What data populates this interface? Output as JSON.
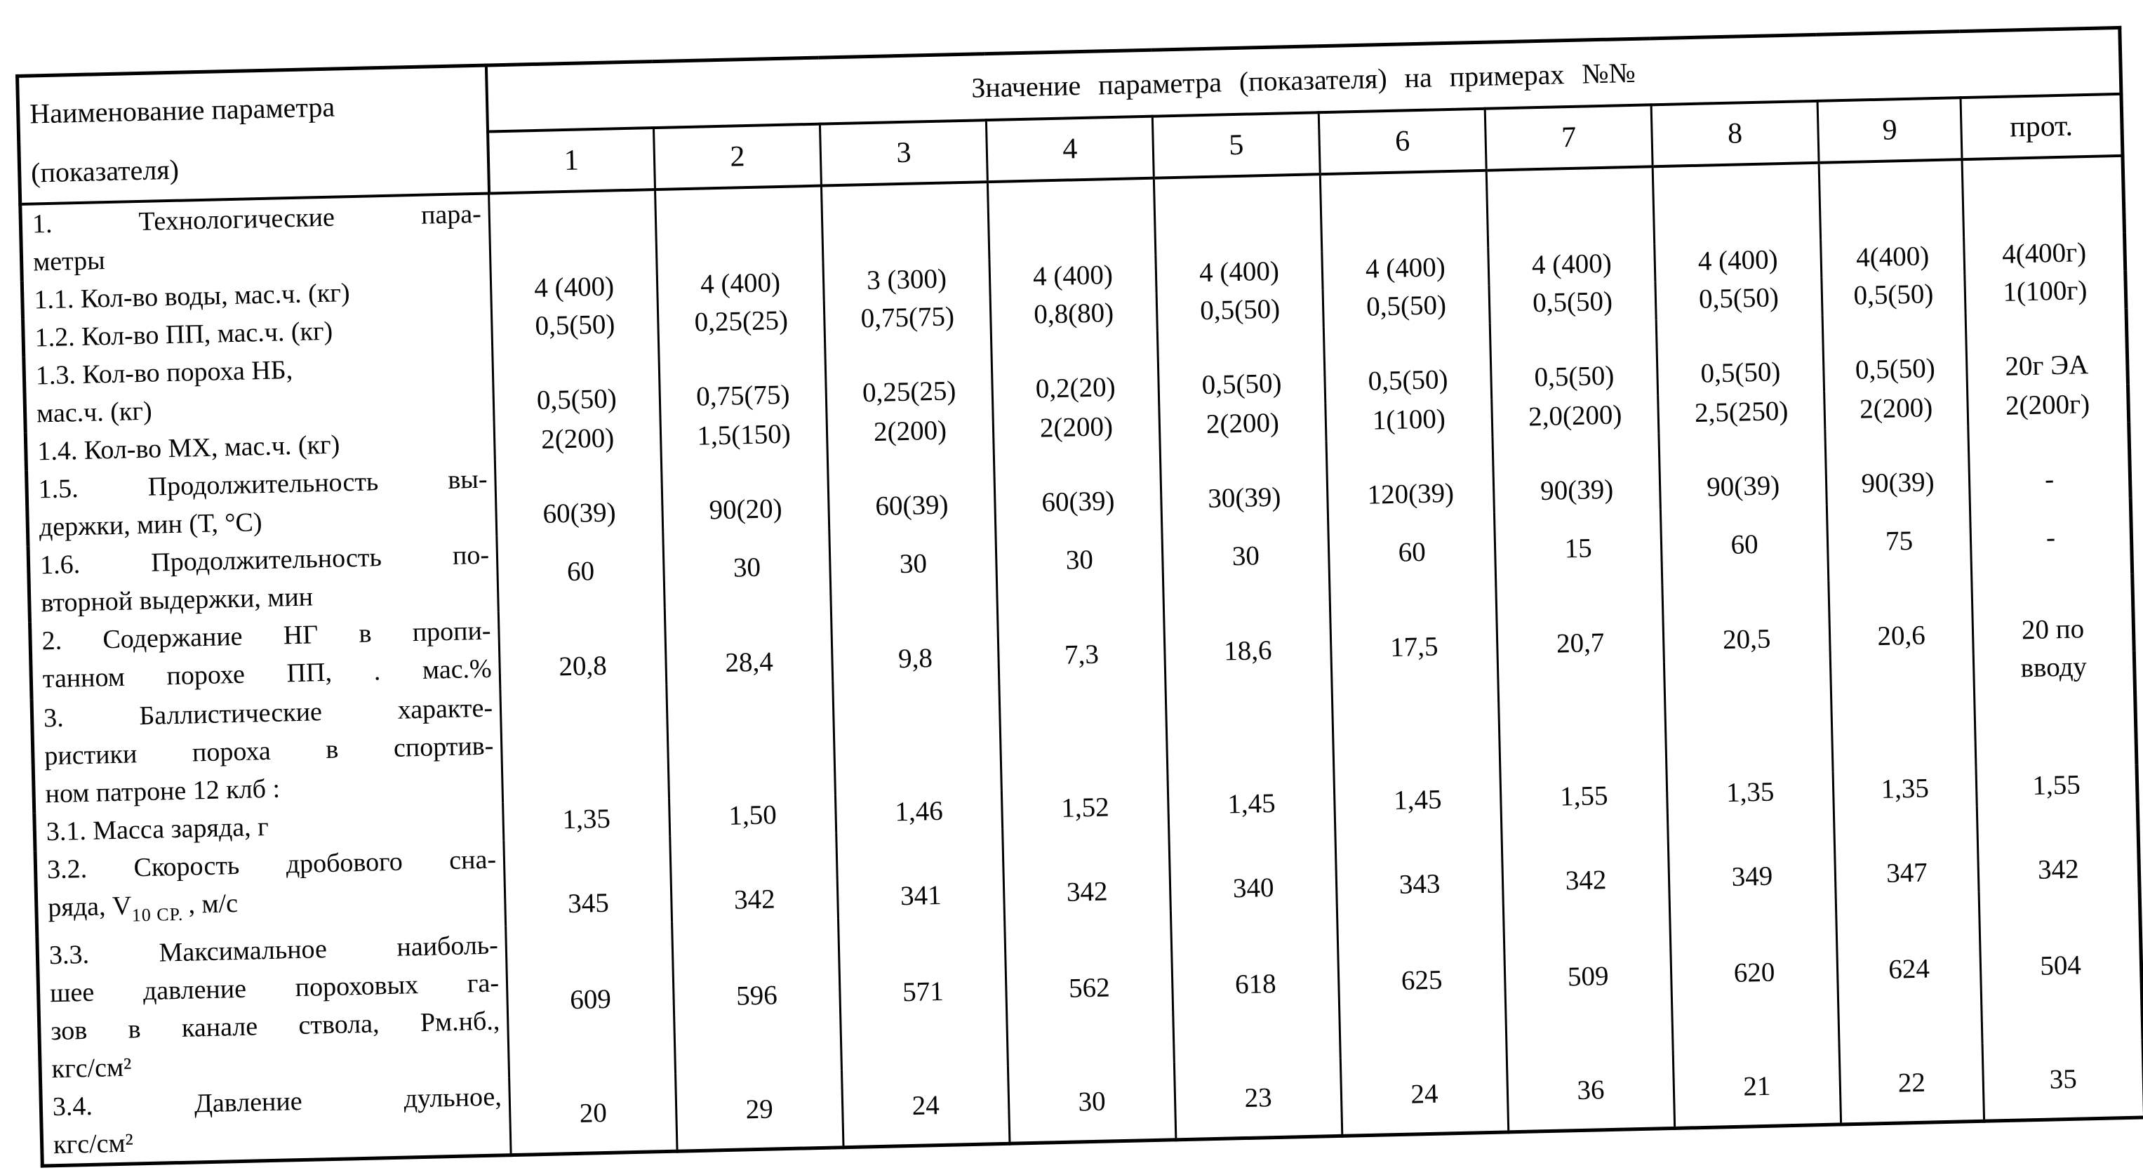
{
  "header": {
    "param_line1": "Наименование параметра",
    "param_line2": "(показателя)",
    "value_title": "Значение параметра (показателя) на примерах №№",
    "columns": [
      "1",
      "2",
      "3",
      "4",
      "5",
      "6",
      "7",
      "8",
      "9",
      "прот."
    ]
  },
  "rows": [
    {
      "label": [
        {
          "t": "1.  Технологические пара-",
          "j": true
        },
        {
          "t": "метры"
        }
      ]
    },
    {
      "va": "m",
      "label": [
        {
          "t": "1.1. Кол-во воды, мас.ч. (кг)"
        }
      ],
      "values": [
        "4 (400)",
        "4 (400)",
        "3 (300)",
        "4 (400)",
        "4 (400)",
        "4 (400)",
        "4 (400)",
        "4 (400)",
        "4(400)",
        "4(400г)"
      ]
    },
    {
      "va": "m",
      "label": [
        {
          "t": "1.2. Кол-во ПП, мас.ч. (кг)"
        }
      ],
      "values": [
        "0,5(50)",
        "0,25(25)",
        "0,75(75)",
        "0,8(80)",
        "0,5(50)",
        "0,5(50)",
        "0,5(50)",
        "0,5(50)",
        "0,5(50)",
        "1(100г)"
      ]
    },
    {
      "va": "b",
      "label": [
        {
          "t": "1.3. Кол-во пороха НБ,"
        },
        {
          "t": "мас.ч. (кг)"
        }
      ],
      "values": [
        "0,5(50)",
        "0,75(75)",
        "0,25(25)",
        "0,2(20)",
        "0,5(50)",
        "0,5(50)",
        "0,5(50)",
        "0,5(50)",
        "0,5(50)",
        "20г ЭА"
      ]
    },
    {
      "va": "m",
      "label": [
        {
          "t": "1.4. Кол-во МХ, мас.ч. (кг)"
        }
      ],
      "values": [
        "2(200)",
        "1,5(150)",
        "2(200)",
        "2(200)",
        "2(200)",
        "1(100)",
        "2,0(200)",
        "2,5(250)",
        "2(200)",
        "2(200г)"
      ]
    },
    {
      "va": "b",
      "label": [
        {
          "t": "1.5. Продолжительность вы-",
          "j": true
        },
        {
          "t": "держки, мин (Т, °С)"
        }
      ],
      "values": [
        "60(39)",
        "90(20)",
        "60(39)",
        "60(39)",
        "30(39)",
        "120(39)",
        "90(39)",
        "90(39)",
        "90(39)",
        "-"
      ]
    },
    {
      "va": "m",
      "label": [
        {
          "t": "1.6. Продолжительность по-",
          "j": true
        },
        {
          "t": "вторной выдержки, мин"
        }
      ],
      "values": [
        "60",
        "30",
        "30",
        "30",
        "30",
        "60",
        "15",
        "60",
        "75",
        "-"
      ]
    },
    {
      "va": "b",
      "label": [
        {
          "t": "2.  Содержание НГ в пропи-",
          "j": true
        },
        {
          "t": "танном порохе ПП, . мас.%",
          "j": true
        }
      ],
      "values": [
        "20,8",
        "28,4",
        "9,8",
        "7,3",
        "18,6",
        "17,5",
        "20,7",
        "20,5",
        "20,6",
        "20 по\nвводу"
      ]
    },
    {
      "label": [
        {
          "t": "3.  Баллистические характе-",
          "j": true
        },
        {
          "t": "ристики пороха в спортив-",
          "j": true
        },
        {
          "t": "ном патроне 12 клб :"
        }
      ]
    },
    {
      "va": "m",
      "label": [
        {
          "t": "3.1. Масса заряда, г"
        }
      ],
      "values": [
        "1,35",
        "1,50",
        "1,46",
        "1,52",
        "1,45",
        "1,45",
        "1,55",
        "1,35",
        "1,35",
        "1,55"
      ]
    },
    {
      "va": "b",
      "label": [
        {
          "t": "3.2. Скорость дробового сна-",
          "j": true
        },
        {
          "parts": [
            {
              "t": "ряда, V"
            },
            {
              "t": "10 СР. ",
              "v": "sub"
            },
            {
              "t": ", м/с"
            }
          ]
        }
      ],
      "values": [
        "345",
        "342",
        "341",
        "342",
        "340",
        "343",
        "342",
        "349",
        "347",
        "342"
      ]
    },
    {
      "va": "m",
      "label": [
        {
          "t": "3.3. Максимальное  наиболь-",
          "j": true
        },
        {
          "t": "шее давление пороховых га-",
          "j": true
        },
        {
          "t": "зов в канале ствола, Рм.нб.,",
          "j": true
        },
        {
          "t": "кгс/см²"
        }
      ],
      "values": [
        "609",
        "596",
        "571",
        "562",
        "618",
        "625",
        "509",
        "620",
        "624",
        "504"
      ]
    },
    {
      "va": "m",
      "label": [
        {
          "t": "3.4.  Давление  дульное,",
          "j": true
        },
        {
          "t": "кгс/см²"
        }
      ],
      "values": [
        "20",
        "29",
        "24",
        "30",
        "23",
        "24",
        "36",
        "21",
        "22",
        "35"
      ]
    }
  ]
}
